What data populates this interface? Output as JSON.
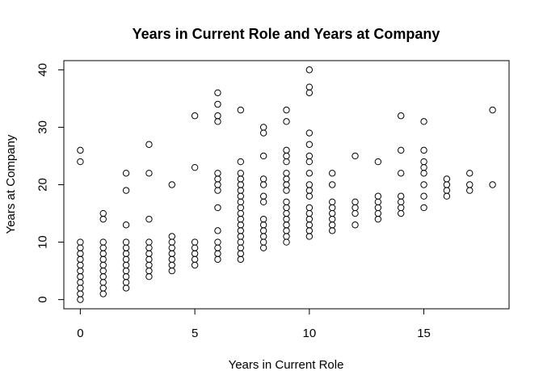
{
  "chart_data": {
    "type": "scatter",
    "title": "Years in Current Role and Years at Company",
    "xlabel": "Years in Current Role",
    "ylabel": "Years at Company",
    "xlim": [
      -0.72,
      18.72
    ],
    "ylim": [
      -1.6,
      41.6
    ],
    "xticks": [
      0,
      5,
      10,
      15
    ],
    "yticks": [
      0,
      10,
      20,
      30,
      40
    ],
    "grid": false,
    "legend": "none",
    "marker": "open-circle",
    "points": [
      [
        0,
        0
      ],
      [
        0,
        1
      ],
      [
        0,
        2
      ],
      [
        0,
        3
      ],
      [
        0,
        4
      ],
      [
        0,
        5
      ],
      [
        0,
        6
      ],
      [
        0,
        7
      ],
      [
        0,
        8
      ],
      [
        0,
        9
      ],
      [
        0,
        10
      ],
      [
        0,
        24
      ],
      [
        0,
        26
      ],
      [
        1,
        1
      ],
      [
        1,
        2
      ],
      [
        1,
        3
      ],
      [
        1,
        4
      ],
      [
        1,
        5
      ],
      [
        1,
        6
      ],
      [
        1,
        7
      ],
      [
        1,
        8
      ],
      [
        1,
        9
      ],
      [
        1,
        10
      ],
      [
        1,
        14
      ],
      [
        1,
        15
      ],
      [
        2,
        2
      ],
      [
        2,
        3
      ],
      [
        2,
        4
      ],
      [
        2,
        5
      ],
      [
        2,
        6
      ],
      [
        2,
        7
      ],
      [
        2,
        8
      ],
      [
        2,
        9
      ],
      [
        2,
        10
      ],
      [
        2,
        13
      ],
      [
        2,
        19
      ],
      [
        2,
        22
      ],
      [
        3,
        4
      ],
      [
        3,
        5
      ],
      [
        3,
        6
      ],
      [
        3,
        7
      ],
      [
        3,
        8
      ],
      [
        3,
        9
      ],
      [
        3,
        10
      ],
      [
        3,
        14
      ],
      [
        3,
        22
      ],
      [
        3,
        27
      ],
      [
        4,
        5
      ],
      [
        4,
        6
      ],
      [
        4,
        7
      ],
      [
        4,
        8
      ],
      [
        4,
        9
      ],
      [
        4,
        10
      ],
      [
        4,
        11
      ],
      [
        4,
        20
      ],
      [
        5,
        6
      ],
      [
        5,
        7
      ],
      [
        5,
        8
      ],
      [
        5,
        9
      ],
      [
        5,
        10
      ],
      [
        5,
        23
      ],
      [
        5,
        32
      ],
      [
        6,
        7
      ],
      [
        6,
        8
      ],
      [
        6,
        9
      ],
      [
        6,
        10
      ],
      [
        6,
        12
      ],
      [
        6,
        16
      ],
      [
        6,
        19
      ],
      [
        6,
        20
      ],
      [
        6,
        21
      ],
      [
        6,
        22
      ],
      [
        6,
        31
      ],
      [
        6,
        32
      ],
      [
        6,
        34
      ],
      [
        6,
        36
      ],
      [
        7,
        7
      ],
      [
        7,
        8
      ],
      [
        7,
        9
      ],
      [
        7,
        10
      ],
      [
        7,
        11
      ],
      [
        7,
        12
      ],
      [
        7,
        13
      ],
      [
        7,
        14
      ],
      [
        7,
        15
      ],
      [
        7,
        16
      ],
      [
        7,
        17
      ],
      [
        7,
        18
      ],
      [
        7,
        19
      ],
      [
        7,
        20
      ],
      [
        7,
        21
      ],
      [
        7,
        22
      ],
      [
        7,
        24
      ],
      [
        7,
        33
      ],
      [
        8,
        9
      ],
      [
        8,
        10
      ],
      [
        8,
        11
      ],
      [
        8,
        12
      ],
      [
        8,
        13
      ],
      [
        8,
        14
      ],
      [
        8,
        17
      ],
      [
        8,
        18
      ],
      [
        8,
        20
      ],
      [
        8,
        21
      ],
      [
        8,
        25
      ],
      [
        8,
        29
      ],
      [
        8,
        30
      ],
      [
        9,
        10
      ],
      [
        9,
        11
      ],
      [
        9,
        12
      ],
      [
        9,
        13
      ],
      [
        9,
        14
      ],
      [
        9,
        15
      ],
      [
        9,
        16
      ],
      [
        9,
        17
      ],
      [
        9,
        19
      ],
      [
        9,
        20
      ],
      [
        9,
        21
      ],
      [
        9,
        22
      ],
      [
        9,
        24
      ],
      [
        9,
        25
      ],
      [
        9,
        26
      ],
      [
        9,
        31
      ],
      [
        9,
        33
      ],
      [
        10,
        11
      ],
      [
        10,
        12
      ],
      [
        10,
        13
      ],
      [
        10,
        14
      ],
      [
        10,
        15
      ],
      [
        10,
        16
      ],
      [
        10,
        18
      ],
      [
        10,
        19
      ],
      [
        10,
        20
      ],
      [
        10,
        22
      ],
      [
        10,
        24
      ],
      [
        10,
        25
      ],
      [
        10,
        27
      ],
      [
        10,
        29
      ],
      [
        10,
        36
      ],
      [
        10,
        37
      ],
      [
        10,
        40
      ],
      [
        11,
        12
      ],
      [
        11,
        13
      ],
      [
        11,
        14
      ],
      [
        11,
        15
      ],
      [
        11,
        16
      ],
      [
        11,
        17
      ],
      [
        11,
        20
      ],
      [
        11,
        22
      ],
      [
        12,
        13
      ],
      [
        12,
        15
      ],
      [
        12,
        16
      ],
      [
        12,
        17
      ],
      [
        12,
        25
      ],
      [
        13,
        14
      ],
      [
        13,
        15
      ],
      [
        13,
        16
      ],
      [
        13,
        17
      ],
      [
        13,
        18
      ],
      [
        13,
        24
      ],
      [
        14,
        15
      ],
      [
        14,
        16
      ],
      [
        14,
        17
      ],
      [
        14,
        18
      ],
      [
        14,
        22
      ],
      [
        14,
        26
      ],
      [
        14,
        32
      ],
      [
        15,
        16
      ],
      [
        15,
        18
      ],
      [
        15,
        20
      ],
      [
        15,
        22
      ],
      [
        15,
        23
      ],
      [
        15,
        24
      ],
      [
        15,
        26
      ],
      [
        15,
        31
      ],
      [
        16,
        18
      ],
      [
        16,
        19
      ],
      [
        16,
        20
      ],
      [
        16,
        21
      ],
      [
        17,
        19
      ],
      [
        17,
        20
      ],
      [
        17,
        22
      ],
      [
        18,
        20
      ],
      [
        18,
        33
      ]
    ]
  }
}
